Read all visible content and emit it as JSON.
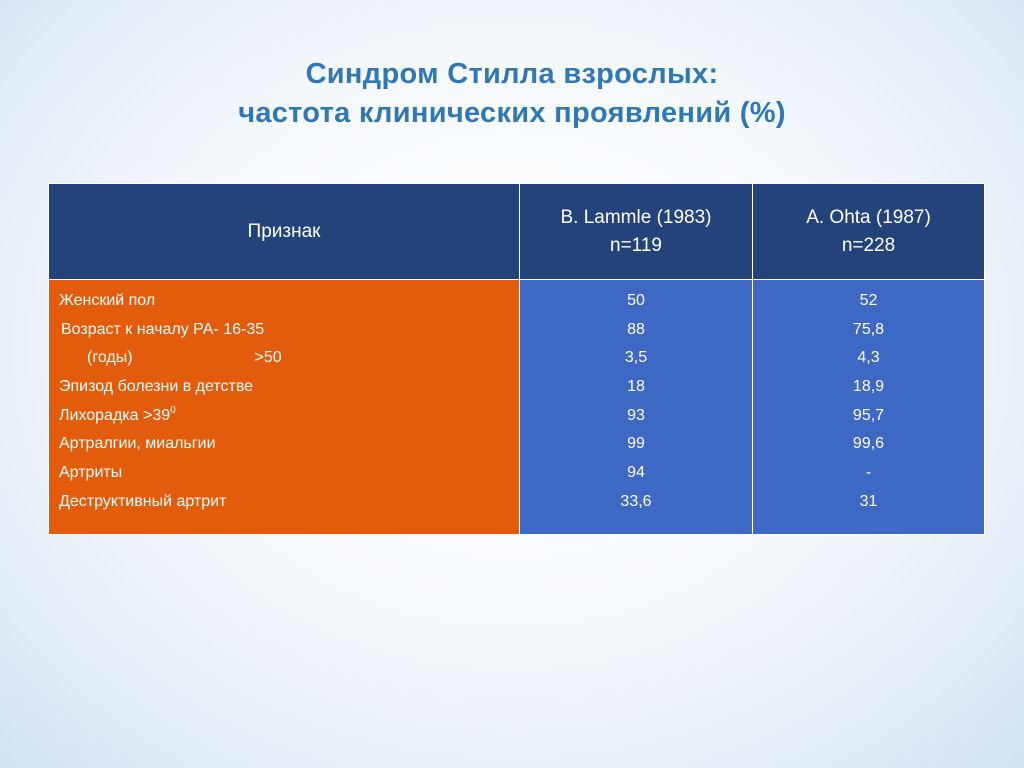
{
  "title": {
    "line1": "Синдром Стилла взрослых:",
    "line2": "частота клинических проявлений (%)"
  },
  "table": {
    "headers": {
      "sign": "Признак",
      "study_a_name": "B. Lammle (1983)",
      "study_a_n": "n=119",
      "study_b_name": "A. Ohta (1987)",
      "study_b_n": "n=228"
    },
    "rows": [
      {
        "sign": "Женский пол",
        "a": "50",
        "b": "52"
      },
      {
        "sign": "Возраст к началу РА- 16-35",
        "a": "88",
        "b": "75,8"
      },
      {
        "sign_left": "(годы)",
        "sign_right": ">50",
        "a": "3,5",
        "b": "4,3"
      },
      {
        "sign": "Эпизод болезни в детстве",
        "a": "18",
        "b": "18,9"
      },
      {
        "sign": "Лихорадка >39",
        "sign_sup": "0",
        "a": "93",
        "b": "95,7"
      },
      {
        "sign": "Артралгии, миальгии",
        "a": "99",
        "b": "99,6"
      },
      {
        "sign": "Артриты",
        "a": "94",
        "b": "-"
      },
      {
        "sign": "Деструктивный артрит",
        "a": "33,6",
        "b": "31"
      }
    ]
  },
  "colors": {
    "title": "#2f78b6",
    "header_bg": "#24437a",
    "sign_column_bg": "#e25c0c",
    "value_columns_bg": "#3d68c3"
  }
}
